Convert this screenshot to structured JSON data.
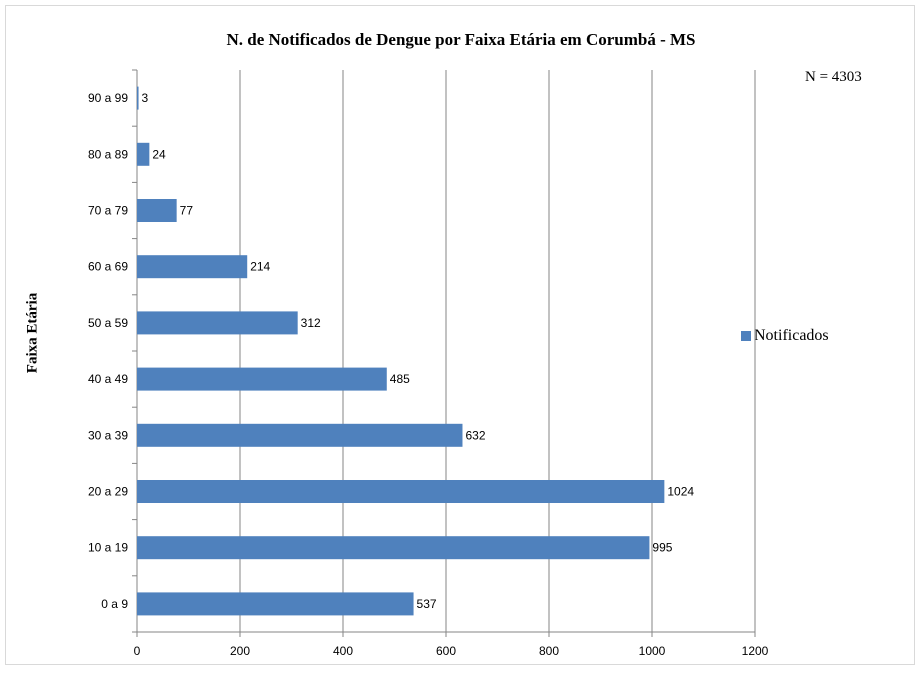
{
  "chart_data": {
    "type": "bar",
    "orientation": "horizontal",
    "title": "N. de Notificados de Dengue por Faixa Etária em Corumbá - MS",
    "note": "N = 4303",
    "xlabel": "",
    "ylabel": "Faixa Etária",
    "categories": [
      "0 a 9",
      "10 a 19",
      "20 a 29",
      "30 a 39",
      "40 a 49",
      "50 a 59",
      "60 a 69",
      "70 a 79",
      "80 a 89",
      "90 a 99"
    ],
    "series": [
      {
        "name": "Notificados",
        "values": [
          537,
          995,
          1024,
          632,
          485,
          312,
          214,
          77,
          24,
          3
        ],
        "color": "#4f81bd"
      }
    ],
    "xlim": [
      0,
      1200
    ],
    "x_ticks": [
      0,
      200,
      400,
      600,
      800,
      1000,
      1200
    ],
    "grid": "vertical",
    "legend_position": "right"
  }
}
